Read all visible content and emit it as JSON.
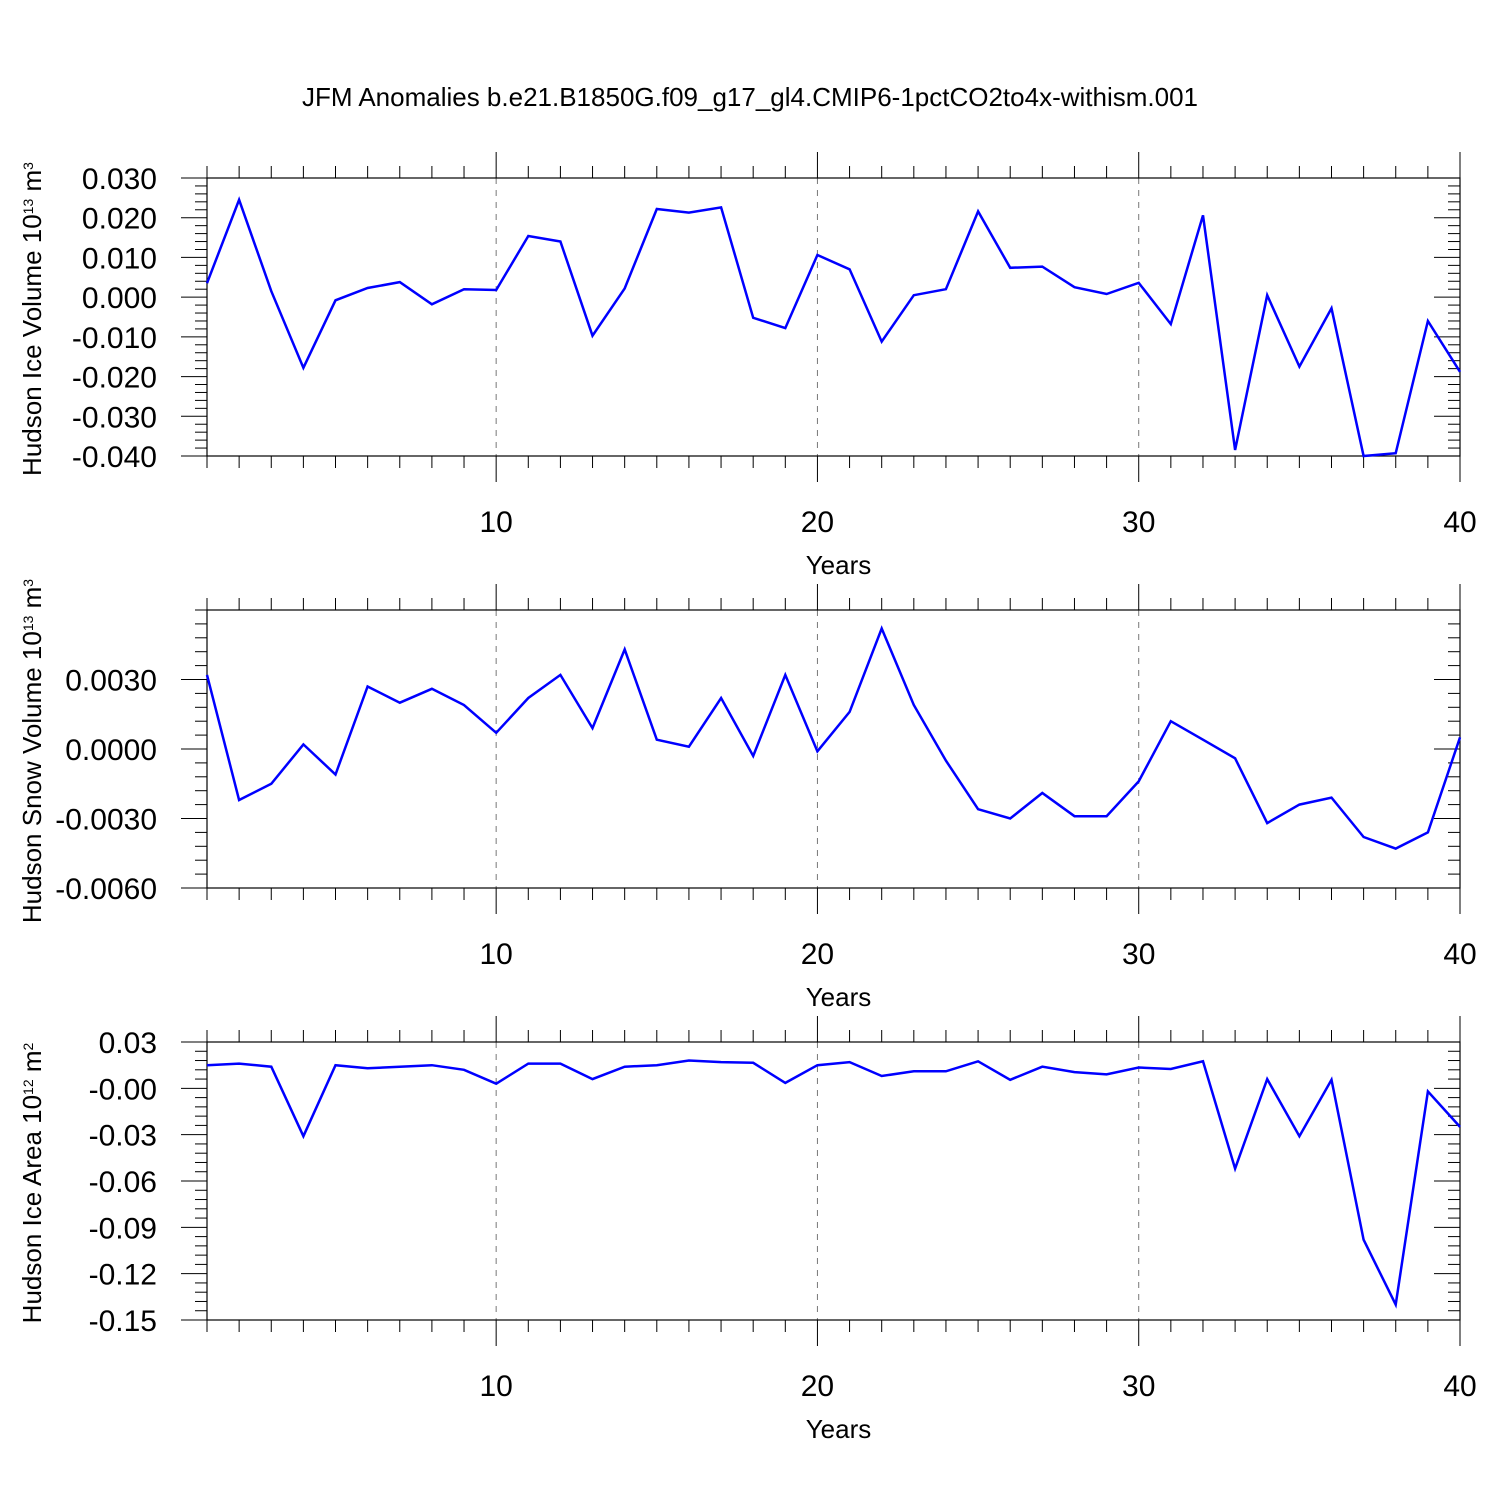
{
  "title": "JFM Anomalies b.e21.B1850G.f09_g17_gl4.CMIP6-1pctCO2to4x-withism.001",
  "line_color": "#0000ff",
  "grid_color": "#777777",
  "chart_data": [
    {
      "type": "line",
      "ylabel": "Hudson Ice Volume 10",
      "ylabel_exp": "13",
      "ylabel_unit": " m",
      "ylabel_unit_exp": "3",
      "xlabel": "Years",
      "xlim": [
        1,
        40
      ],
      "ylim": [
        -0.04,
        0.03
      ],
      "xticks": [
        10,
        20,
        30,
        40
      ],
      "yticks": [
        0.03,
        0.02,
        0.01,
        0.0,
        -0.01,
        -0.02,
        -0.03,
        -0.04
      ],
      "ytick_labels": [
        "0.030",
        "0.020",
        "0.010",
        "0.000",
        "-0.010",
        "-0.020",
        "-0.030",
        "-0.040"
      ],
      "grid": "vertical dashed at major x ticks",
      "series": [
        {
          "x": [
            1,
            2,
            3,
            4,
            5,
            6,
            7,
            8,
            9,
            10,
            11,
            12,
            13,
            14,
            15,
            16,
            17,
            18,
            19,
            20,
            21,
            22,
            23,
            24,
            25,
            26,
            27,
            28,
            29,
            30,
            31,
            32,
            33,
            34,
            35,
            36,
            37,
            38,
            39,
            40
          ],
          "values": [
            0.0035,
            0.0245,
            0.0015,
            -0.0178,
            -0.0008,
            0.0023,
            0.0038,
            -0.0018,
            0.002,
            0.0018,
            0.0154,
            0.014,
            -0.0097,
            0.0022,
            0.0222,
            0.0213,
            0.0226,
            -0.0052,
            -0.0078,
            0.0106,
            0.007,
            -0.0112,
            0.0005,
            0.002,
            0.0216,
            0.0074,
            0.0077,
            0.0025,
            0.0008,
            0.0036,
            -0.0068,
            0.0206,
            -0.0385,
            0.0005,
            -0.0175,
            -0.0028,
            -0.04,
            -0.0393,
            -0.006,
            -0.0188
          ]
        }
      ]
    },
    {
      "type": "line",
      "ylabel": "Hudson Snow Volume 10",
      "ylabel_exp": "13",
      "ylabel_unit": " m",
      "ylabel_unit_exp": "3",
      "xlabel": "Years",
      "xlim": [
        1,
        40
      ],
      "ylim": [
        -0.006,
        0.006
      ],
      "xticks": [
        10,
        20,
        30,
        40
      ],
      "yticks": [
        0.003,
        0.0,
        -0.003,
        -0.006
      ],
      "ytick_labels": [
        "0.0030",
        "0.0000",
        "-0.0030",
        "-0.0060"
      ],
      "grid": "vertical dashed at major x ticks",
      "series": [
        {
          "x": [
            1,
            2,
            3,
            4,
            5,
            6,
            7,
            8,
            9,
            10,
            11,
            12,
            13,
            14,
            15,
            16,
            17,
            18,
            19,
            20,
            21,
            22,
            23,
            24,
            25,
            26,
            27,
            28,
            29,
            30,
            31,
            32,
            33,
            34,
            35,
            36,
            37,
            38,
            39,
            40
          ],
          "values": [
            0.0032,
            -0.0022,
            -0.0015,
            0.0002,
            -0.0011,
            0.0027,
            0.002,
            0.0026,
            0.0019,
            0.0007,
            0.0022,
            0.0032,
            0.0009,
            0.0043,
            0.0004,
            0.0001,
            0.0022,
            -0.0003,
            0.0032,
            -0.0001,
            0.0016,
            0.0052,
            0.0019,
            -0.0005,
            -0.0026,
            -0.003,
            -0.0019,
            -0.0029,
            -0.0029,
            -0.0014,
            0.0012,
            0.0004,
            -0.0004,
            -0.0032,
            -0.0024,
            -0.0021,
            -0.0038,
            -0.0043,
            -0.0036,
            0.0005
          ]
        }
      ]
    },
    {
      "type": "line",
      "ylabel": "Hudson Ice Area 10",
      "ylabel_exp": "12",
      "ylabel_unit": " m",
      "ylabel_unit_exp": "2",
      "xlabel": "Years",
      "xlim": [
        1,
        40
      ],
      "ylim": [
        -0.15,
        0.03
      ],
      "xticks": [
        10,
        20,
        30,
        40
      ],
      "yticks": [
        0.03,
        0.0,
        -0.03,
        -0.06,
        -0.09,
        -0.12,
        -0.15
      ],
      "ytick_labels": [
        "0.03",
        "-0.00",
        "-0.03",
        "-0.06",
        "-0.09",
        "-0.12",
        "-0.15"
      ],
      "grid": "vertical dashed at major x ticks",
      "series": [
        {
          "x": [
            1,
            2,
            3,
            4,
            5,
            6,
            7,
            8,
            9,
            10,
            11,
            12,
            13,
            14,
            15,
            16,
            17,
            18,
            19,
            20,
            21,
            22,
            23,
            24,
            25,
            26,
            27,
            28,
            29,
            30,
            31,
            32,
            33,
            34,
            35,
            36,
            37,
            38,
            39,
            40
          ],
          "values": [
            0.015,
            0.016,
            0.014,
            -0.031,
            0.015,
            0.013,
            0.014,
            0.015,
            0.012,
            0.003,
            0.016,
            0.016,
            0.006,
            0.014,
            0.015,
            0.018,
            0.017,
            0.0165,
            0.0035,
            0.015,
            0.017,
            0.008,
            0.011,
            0.011,
            0.0175,
            0.0055,
            0.014,
            0.0105,
            0.009,
            0.0135,
            0.0125,
            0.0175,
            -0.052,
            0.006,
            -0.031,
            0.0055,
            -0.098,
            -0.14,
            -0.002,
            -0.025
          ]
        }
      ]
    }
  ]
}
